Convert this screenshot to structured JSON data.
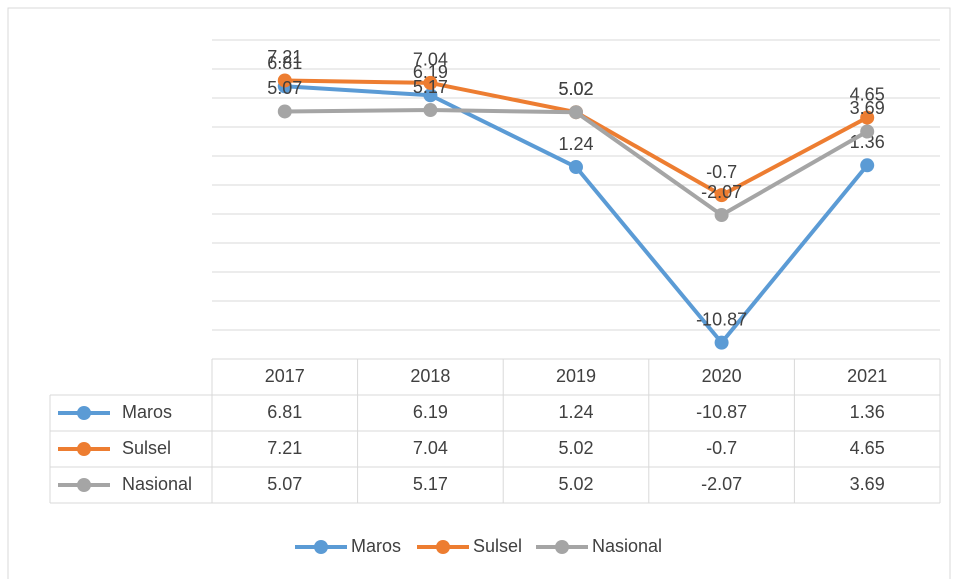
{
  "chart_data": {
    "type": "line",
    "categories": [
      "2017",
      "2018",
      "2019",
      "2020",
      "2021"
    ],
    "series": [
      {
        "name": "Maros",
        "color": "#5b9bd5",
        "values": [
          6.81,
          6.19,
          1.24,
          -10.87,
          1.36
        ]
      },
      {
        "name": "Sulsel",
        "color": "#ed7d31",
        "values": [
          7.21,
          7.04,
          5.02,
          -0.7,
          4.65
        ]
      },
      {
        "name": "Nasional",
        "color": "#a5a5a5",
        "values": [
          5.07,
          5.17,
          5.02,
          -2.07,
          3.69
        ]
      }
    ],
    "ylim": [
      -12,
      10
    ],
    "yticks": [
      -12,
      -10,
      -8,
      -6,
      -4,
      -2,
      0,
      2,
      4,
      6,
      8,
      10
    ],
    "grid": true
  }
}
